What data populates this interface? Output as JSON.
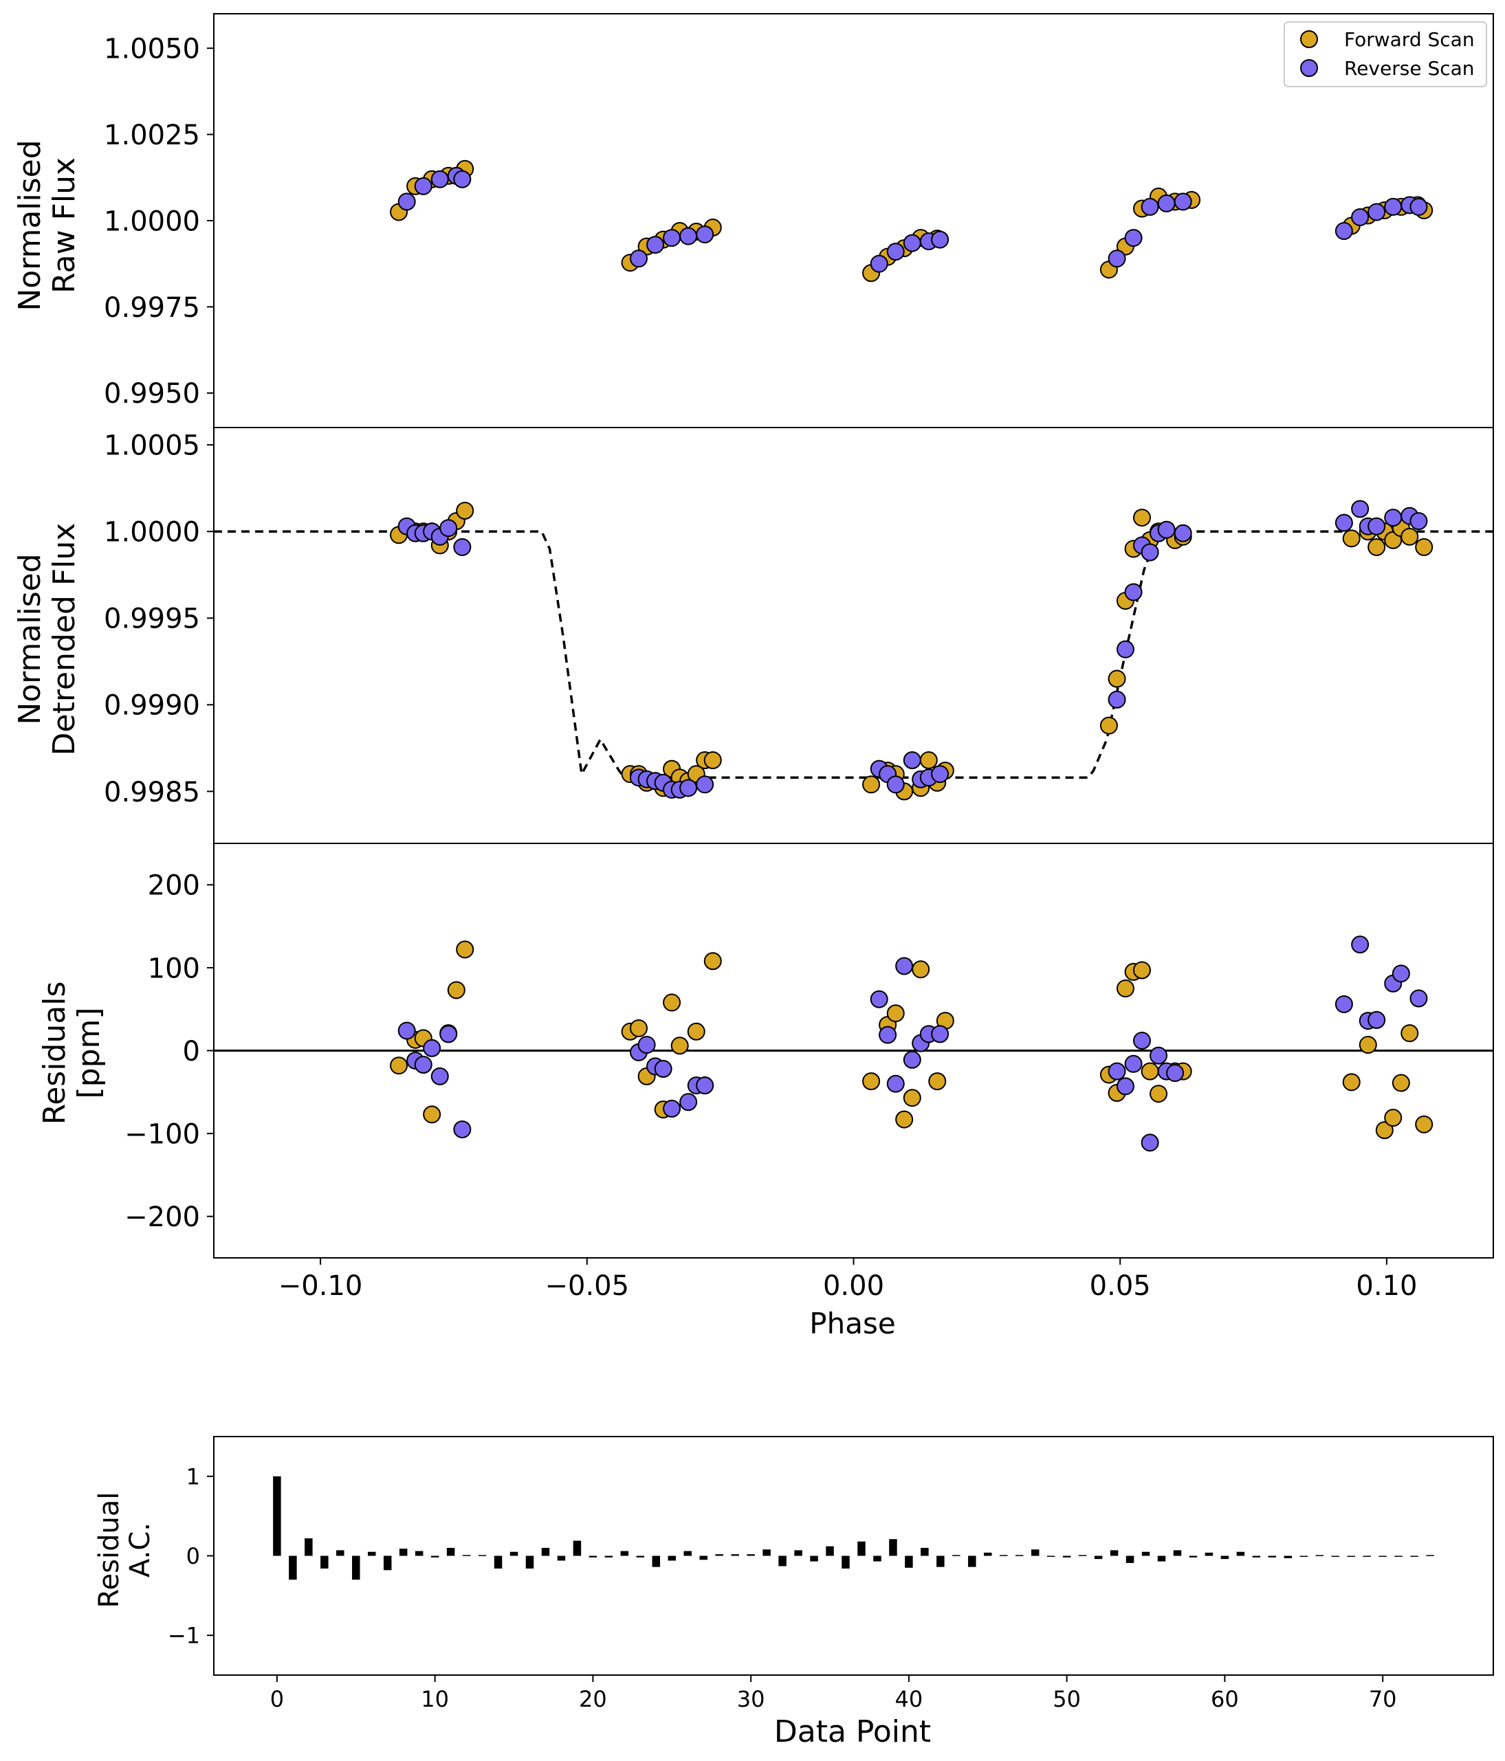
{
  "colors": {
    "forward": "#daa520",
    "reverse": "#7b68ee",
    "edge": "#000000",
    "model": "#000000",
    "bars": "#000000"
  },
  "legend": {
    "placement": "top-right",
    "forward_label": "Forward Scan",
    "reverse_label": "Reverse Scan"
  },
  "chart_data": [
    {
      "id": "raw",
      "type": "scatter",
      "ylabel_lines": [
        "Normalised",
        "Raw Flux"
      ],
      "xlim": [
        -0.12,
        0.12
      ],
      "ylim": [
        0.994,
        1.006
      ],
      "yticks": [
        0.995,
        0.9975,
        1.0,
        1.0025,
        1.005
      ],
      "ytick_labels": [
        "0.9950",
        "0.9975",
        "1.0000",
        "1.0025",
        "1.0050"
      ],
      "series": [
        {
          "name": "Forward Scan",
          "x": [
            -0.0853,
            -0.0822,
            -0.0791,
            -0.076,
            -0.0729,
            -0.0419,
            -0.0388,
            -0.0357,
            -0.0326,
            -0.0295,
            -0.0264,
            0.0033,
            0.0064,
            0.0095,
            0.0126,
            0.0157,
            0.0479,
            0.051,
            0.0541,
            0.0572,
            0.0603,
            0.0634,
            0.0934,
            0.0965,
            0.0996,
            0.1027,
            0.1058,
            0.107
          ],
          "y": [
            1.00025,
            1.001,
            1.0012,
            1.0013,
            1.0015,
            0.99878,
            0.99925,
            0.99945,
            0.9997,
            0.99968,
            0.9998,
            0.99848,
            0.99895,
            0.9992,
            0.9995,
            0.99948,
            0.99858,
            0.99925,
            1.00035,
            1.0007,
            1.00055,
            1.0006,
            0.99985,
            1.00015,
            1.0003,
            1.0004,
            1.00045,
            1.0003
          ]
        },
        {
          "name": "Reverse Scan",
          "x": [
            -0.0838,
            -0.0807,
            -0.0776,
            -0.0745,
            -0.0734,
            -0.0403,
            -0.0372,
            -0.0341,
            -0.031,
            -0.0279,
            0.0048,
            0.0079,
            0.011,
            0.0141,
            0.0162,
            0.0494,
            0.0525,
            0.0556,
            0.0587,
            0.0618,
            0.092,
            0.095,
            0.0981,
            0.1012,
            0.1043,
            0.106
          ],
          "y": [
            1.00055,
            1.001,
            1.0012,
            1.0013,
            1.0012,
            0.9989,
            0.9993,
            0.9995,
            0.99955,
            0.9996,
            0.99875,
            0.9991,
            0.99935,
            0.9994,
            0.99945,
            0.9989,
            0.9995,
            1.0004,
            1.0005,
            1.00055,
            0.9997,
            1.0001,
            1.00025,
            1.0004,
            1.00045,
            1.0004
          ]
        }
      ]
    },
    {
      "id": "detrended",
      "type": "scatter",
      "ylabel_lines": [
        "Normalised",
        "Detrended Flux"
      ],
      "xlim": [
        -0.12,
        0.12
      ],
      "ylim": [
        0.9982,
        1.0006
      ],
      "yticks": [
        0.9985,
        0.999,
        0.9995,
        1.0,
        1.0005
      ],
      "ytick_labels": [
        "0.9985",
        "0.9990",
        "0.9995",
        "1.0000",
        "1.0005"
      ],
      "model": {
        "x": [
          -0.12,
          -0.0585,
          -0.057,
          -0.0545,
          -0.051,
          -0.0475,
          -0.044,
          -0.043,
          0.044,
          0.045,
          0.0475,
          0.051,
          0.0545,
          0.057,
          0.0585,
          0.12
        ],
        "y": [
          1.0,
          1.0,
          0.9999,
          0.9994,
          0.9986,
          0.9988,
          0.99862,
          0.99858,
          0.99858,
          0.99862,
          0.9988,
          0.9993,
          0.99978,
          0.99998,
          1.0,
          1.0
        ]
      },
      "series": [
        {
          "name": "Forward Scan",
          "x": [
            -0.0853,
            -0.0822,
            -0.0807,
            -0.0791,
            -0.0776,
            -0.076,
            -0.0745,
            -0.0729,
            -0.0419,
            -0.0403,
            -0.0388,
            -0.0372,
            -0.0357,
            -0.0341,
            -0.0326,
            -0.031,
            -0.0295,
            -0.0279,
            -0.0264,
            0.0033,
            0.0064,
            0.0079,
            0.0095,
            0.0126,
            0.0141,
            0.0157,
            0.0172,
            0.0479,
            0.0494,
            0.051,
            0.0525,
            0.0541,
            0.0556,
            0.0572,
            0.0603,
            0.0618,
            0.0934,
            0.0965,
            0.0981,
            0.0996,
            0.1012,
            0.1027,
            0.1043,
            0.107
          ],
          "y": [
            0.99998,
            1.0,
            1.0,
            1.0,
            0.99992,
            1.0,
            1.00006,
            1.00012,
            0.9986,
            0.9986,
            0.99855,
            0.99856,
            0.99852,
            0.99863,
            0.99858,
            0.99856,
            0.9986,
            0.99868,
            0.99868,
            0.99854,
            0.99862,
            0.9986,
            0.9985,
            0.99852,
            0.99868,
            0.99855,
            0.99862,
            0.99888,
            0.99915,
            0.9996,
            0.9999,
            1.00008,
            0.99995,
            1.0,
            0.99995,
            0.99997,
            0.99996,
            1.0,
            0.99991,
            1.0,
            0.99995,
            1.00002,
            0.99997,
            0.99991
          ]
        },
        {
          "name": "Reverse Scan",
          "x": [
            -0.0838,
            -0.0822,
            -0.0807,
            -0.0791,
            -0.0776,
            -0.076,
            -0.0734,
            -0.0403,
            -0.0388,
            -0.0372,
            -0.0357,
            -0.0341,
            -0.0326,
            -0.031,
            -0.0279,
            0.0048,
            0.0064,
            0.0079,
            0.011,
            0.0126,
            0.0141,
            0.0162,
            0.0494,
            0.051,
            0.0525,
            0.0541,
            0.0556,
            0.0572,
            0.0587,
            0.0618,
            0.092,
            0.095,
            0.0965,
            0.0981,
            0.1012,
            0.1043,
            0.106
          ],
          "y": [
            1.00003,
            0.99999,
            0.99999,
            1.0,
            0.99997,
            1.00002,
            0.99991,
            0.99858,
            0.99857,
            0.99856,
            0.99855,
            0.99851,
            0.99851,
            0.99852,
            0.99854,
            0.99863,
            0.9986,
            0.99854,
            0.99868,
            0.99857,
            0.99858,
            0.9986,
            0.99903,
            0.99932,
            0.99965,
            0.99992,
            0.99988,
            0.99999,
            1.00001,
            0.99999,
            1.00005,
            1.00013,
            1.00003,
            1.00003,
            1.00008,
            1.00009,
            1.00006
          ]
        }
      ]
    },
    {
      "id": "residuals",
      "type": "scatter",
      "ylabel_lines": [
        "Residuals",
        "[ppm]"
      ],
      "xlabel": "Phase",
      "xlim": [
        -0.12,
        0.12
      ],
      "ylim": [
        -250,
        250
      ],
      "yticks": [
        -200,
        -100,
        0,
        100,
        200
      ],
      "ytick_labels": [
        "−200",
        "−100",
        "0",
        "100",
        "200"
      ],
      "xticks": [
        -0.1,
        -0.05,
        0.0,
        0.05,
        0.1
      ],
      "xtick_labels": [
        "−0.10",
        "−0.05",
        "0.00",
        "0.05",
        "0.10"
      ],
      "zero_line": true,
      "series": [
        {
          "name": "Forward Scan",
          "x": [
            -0.0853,
            -0.0822,
            -0.0807,
            -0.0791,
            -0.076,
            -0.0745,
            -0.0729,
            -0.0419,
            -0.0403,
            -0.0388,
            -0.0357,
            -0.0341,
            -0.0326,
            -0.0295,
            -0.0279,
            -0.0264,
            0.0033,
            0.0064,
            0.0079,
            0.0095,
            0.011,
            0.0126,
            0.0157,
            0.0172,
            0.0479,
            0.0494,
            0.051,
            0.0525,
            0.0541,
            0.0556,
            0.0572,
            0.0603,
            0.0618,
            0.0934,
            0.0965,
            0.0996,
            0.1012,
            0.1027,
            0.1043,
            0.107
          ],
          "y": [
            -18,
            13,
            15,
            -77,
            21,
            73,
            122,
            23,
            27,
            -31,
            -71,
            58,
            6,
            23,
            -42,
            108,
            -37,
            31,
            45,
            -83,
            -57,
            98,
            -37,
            36,
            -29,
            -51,
            75,
            95,
            97,
            -25,
            -52,
            -25,
            -25,
            -38,
            7,
            -96,
            -81,
            -39,
            21,
            -89
          ]
        },
        {
          "name": "Reverse Scan",
          "x": [
            -0.0838,
            -0.0822,
            -0.0807,
            -0.0791,
            -0.0776,
            -0.076,
            -0.0734,
            -0.0403,
            -0.0388,
            -0.0372,
            -0.0357,
            -0.0341,
            -0.031,
            -0.0295,
            -0.0279,
            0.0048,
            0.0064,
            0.0079,
            0.0095,
            0.011,
            0.0126,
            0.0141,
            0.0162,
            0.0494,
            0.051,
            0.0525,
            0.0541,
            0.0556,
            0.0572,
            0.0587,
            0.0603,
            0.092,
            0.095,
            0.0965,
            0.0981,
            0.1012,
            0.1027,
            0.106
          ],
          "y": [
            24,
            -12,
            -17,
            3,
            -31,
            20,
            -95,
            -2,
            7,
            -19,
            -22,
            -70,
            -62,
            -42,
            -42,
            62,
            19,
            -40,
            102,
            -11,
            9,
            20,
            20,
            -25,
            -43,
            -16,
            12,
            -111,
            -6,
            -25,
            -27,
            56,
            128,
            36,
            37,
            81,
            93,
            63
          ]
        }
      ]
    },
    {
      "id": "autocorrelation",
      "type": "bar",
      "ylabel_lines": [
        "Residual",
        "A.C."
      ],
      "xlabel": "Data Point",
      "xlim": [
        -4,
        77
      ],
      "ylim": [
        -1.5,
        1.5
      ],
      "yticks": [
        -1,
        0,
        1
      ],
      "ytick_labels": [
        "−1",
        "0",
        "1"
      ],
      "xticks": [
        0,
        10,
        20,
        30,
        40,
        50,
        60,
        70
      ],
      "xtick_labels": [
        "0",
        "10",
        "20",
        "30",
        "40",
        "50",
        "60",
        "70"
      ],
      "x": [
        0,
        1,
        2,
        3,
        4,
        5,
        6,
        7,
        8,
        9,
        10,
        11,
        12,
        13,
        14,
        15,
        16,
        17,
        18,
        19,
        20,
        21,
        22,
        23,
        24,
        25,
        26,
        27,
        28,
        29,
        30,
        31,
        32,
        33,
        34,
        35,
        36,
        37,
        38,
        39,
        40,
        41,
        42,
        43,
        44,
        45,
        46,
        47,
        48,
        49,
        50,
        51,
        52,
        53,
        54,
        55,
        56,
        57,
        58,
        59,
        60,
        61,
        62,
        63,
        64,
        65,
        66,
        67,
        68,
        69,
        70,
        71,
        72,
        73
      ],
      "values": [
        1.0,
        -0.3,
        0.22,
        -0.16,
        0.07,
        -0.3,
        0.05,
        -0.18,
        0.09,
        0.06,
        -0.02,
        0.1,
        0.01,
        0.01,
        -0.16,
        0.05,
        -0.16,
        0.1,
        -0.06,
        0.19,
        -0.02,
        -0.02,
        0.06,
        -0.02,
        -0.14,
        -0.06,
        0.06,
        -0.05,
        0.02,
        0.02,
        0.02,
        0.08,
        -0.13,
        0.07,
        -0.07,
        0.12,
        -0.16,
        0.18,
        -0.07,
        0.21,
        -0.15,
        0.1,
        -0.14,
        0.01,
        -0.14,
        0.04,
        0.01,
        0.01,
        0.08,
        -0.01,
        -0.02,
        0.01,
        -0.04,
        0.07,
        -0.09,
        0.05,
        -0.07,
        0.07,
        -0.02,
        0.04,
        -0.04,
        0.05,
        -0.02,
        -0.02,
        -0.03,
        0.0,
        0.01,
        0.0,
        0.0,
        0.0,
        0.0,
        0.0,
        -0.01,
        0.01
      ]
    }
  ]
}
